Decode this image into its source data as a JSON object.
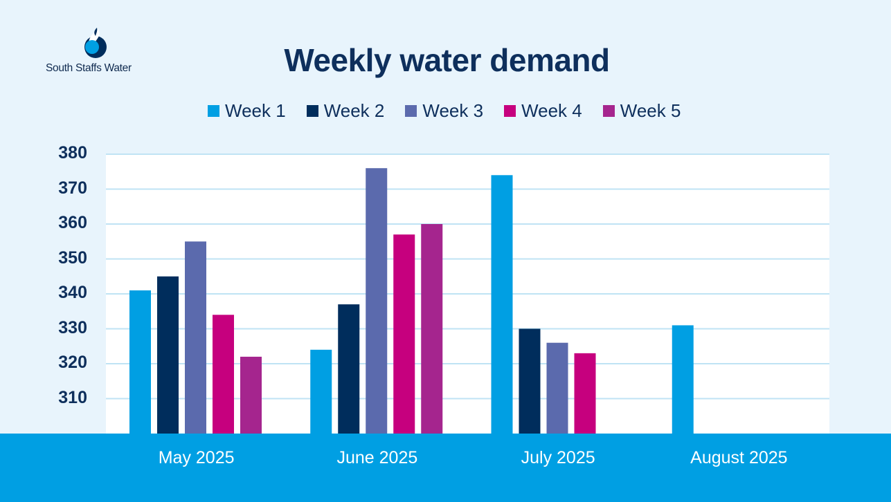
{
  "brand": {
    "name": "South Staffs Water"
  },
  "chart_data": {
    "type": "bar",
    "title": "Weekly water demand",
    "categories": [
      "May 2025",
      "June 2025",
      "July 2025",
      "August 2025"
    ],
    "series": [
      {
        "name": "Week 1",
        "color": "#009fe3",
        "values": [
          341,
          324,
          374,
          331
        ]
      },
      {
        "name": "Week 2",
        "color": "#002d5c",
        "values": [
          345,
          337,
          330,
          null
        ]
      },
      {
        "name": "Week 3",
        "color": "#5b6aad",
        "values": [
          355,
          376,
          326,
          null
        ]
      },
      {
        "name": "Week 4",
        "color": "#c6007e",
        "values": [
          334,
          357,
          323,
          null
        ]
      },
      {
        "name": "Week 5",
        "color": "#a5258e",
        "values": [
          322,
          360,
          null,
          null
        ]
      }
    ],
    "yticks": [
      310,
      320,
      330,
      340,
      350,
      360,
      370,
      380
    ],
    "ylim": [
      300,
      380
    ],
    "xlabel": "",
    "ylabel": "",
    "grid": true,
    "legend": "top-center"
  }
}
